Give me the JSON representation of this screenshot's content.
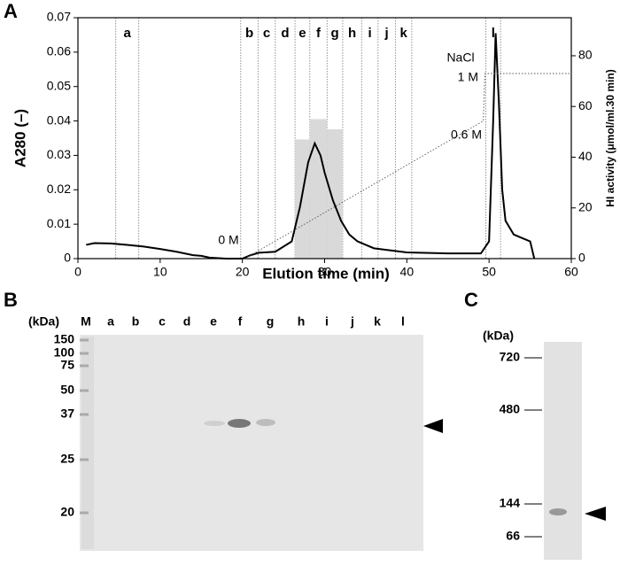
{
  "panel_labels": [
    "A",
    "B",
    "C"
  ],
  "chart_data": {
    "type": "line",
    "x_label": "Elution time (min)",
    "y_label": "A280 (–)",
    "y2_label": "HI activity (μmol/ml.30 min)",
    "xlim": [
      0,
      60
    ],
    "xticks": [
      0,
      10,
      20,
      30,
      40,
      50,
      60
    ],
    "ylim": [
      0,
      0.07
    ],
    "yticks": [
      0,
      0.01,
      0.02,
      0.03,
      0.04,
      0.05,
      0.06,
      0.07
    ],
    "y2lim": [
      0,
      95
    ],
    "y2ticks": [
      0,
      20,
      40,
      60,
      80
    ],
    "series": [
      {
        "type": "bar",
        "axis": "y2",
        "color": "#d9d9d9",
        "bins": [
          26.4,
          28.2,
          30.3,
          32.2
        ],
        "values": [
          47,
          55,
          51
        ]
      },
      {
        "type": "line",
        "color": "#000000",
        "x": [
          1,
          2,
          4,
          6,
          8,
          10,
          12,
          14,
          15,
          16,
          18,
          20,
          21,
          22,
          24,
          26,
          27,
          28,
          28.8,
          29.5,
          30,
          31,
          32,
          33,
          34,
          36,
          40,
          45,
          49,
          50,
          50.5,
          50.8,
          51.2,
          51.6,
          52,
          53,
          55,
          55.5
        ],
        "values": [
          0.004,
          0.0045,
          0.0044,
          0.004,
          0.0035,
          0.0028,
          0.002,
          0.001,
          0.0008,
          0.0003,
          0,
          0,
          0.001,
          0.0017,
          0.002,
          0.005,
          0.015,
          0.028,
          0.0335,
          0.03,
          0.025,
          0.017,
          0.011,
          0.007,
          0.005,
          0.003,
          0.0018,
          0.0015,
          0.0015,
          0.005,
          0.04,
          0.0655,
          0.045,
          0.02,
          0.011,
          0.007,
          0.005,
          0
        ]
      },
      {
        "type": "dotted",
        "color": "#555555",
        "x": [
          20.3,
          49.3,
          49.5,
          60
        ],
        "values": [
          0,
          0.04,
          0.0538,
          0.0538
        ]
      }
    ],
    "fractions": [
      {
        "label": "a",
        "range": [
          4.6,
          7.4
        ]
      },
      {
        "label": "b",
        "range": [
          19.8,
          21.9
        ]
      },
      {
        "label": "c",
        "range": [
          21.9,
          24.0
        ]
      },
      {
        "label": "d",
        "range": [
          24.0,
          26.4
        ]
      },
      {
        "label": "e",
        "range": [
          26.4,
          28.2
        ]
      },
      {
        "label": "f",
        "range": [
          28.2,
          30.3
        ]
      },
      {
        "label": "g",
        "range": [
          30.3,
          32.2
        ]
      },
      {
        "label": "h",
        "range": [
          32.2,
          34.5
        ]
      },
      {
        "label": "i",
        "range": [
          34.5,
          36.5
        ]
      },
      {
        "label": "j",
        "range": [
          36.5,
          38.6
        ]
      },
      {
        "label": "k",
        "range": [
          38.6,
          40.6
        ]
      },
      {
        "label": "l",
        "range": [
          49.6,
          51.4
        ]
      }
    ],
    "annotations": [
      "0 M",
      "0.6 M",
      "NaCl",
      "1 M"
    ]
  },
  "gel_B": {
    "unit_label": "(kDa)",
    "lanes": [
      "M",
      "a",
      "b",
      "c",
      "d",
      "e",
      "f",
      "g",
      "h",
      "i",
      "j",
      "k",
      "l"
    ],
    "markers": [
      150,
      100,
      75,
      50,
      37,
      25,
      20
    ]
  },
  "gel_C": {
    "unit_label": "(kDa)",
    "markers": [
      720,
      480,
      144,
      66
    ]
  }
}
